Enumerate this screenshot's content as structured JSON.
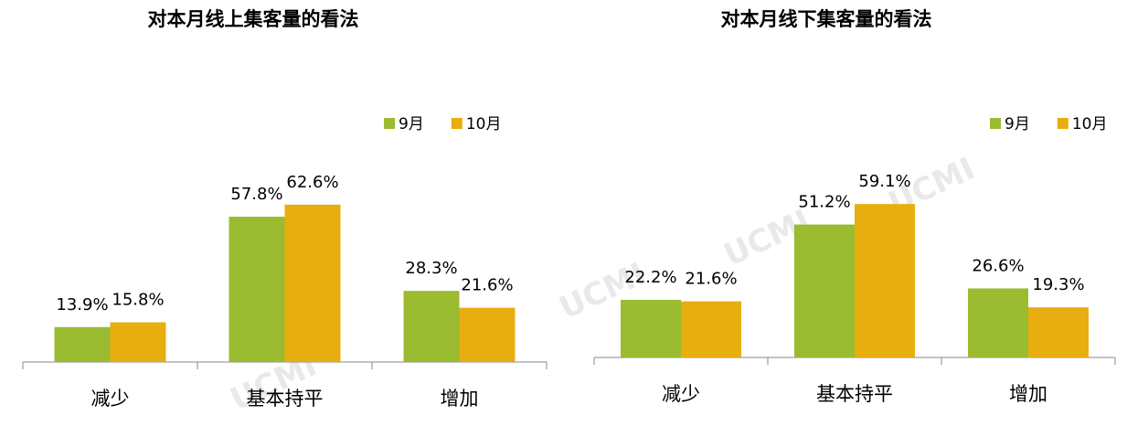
{
  "chart_data": [
    {
      "type": "bar",
      "title": "对本月线上集客量的看法",
      "watermark": "UCMI",
      "categories": [
        "减少",
        "基本持平",
        "增加"
      ],
      "series": [
        {
          "name": "9月",
          "color": "#9bbb30",
          "values": [
            13.9,
            57.8,
            28.3
          ],
          "value_labels": [
            "13.9%",
            "57.8%",
            "28.3%"
          ]
        },
        {
          "name": "10月",
          "color": "#e8ad0e",
          "values": [
            15.8,
            62.6,
            21.6
          ],
          "value_labels": [
            "15.8%",
            "62.6%",
            "21.6%"
          ]
        }
      ]
    },
    {
      "type": "bar",
      "title": "对本月线下集客量的看法",
      "watermark": "UCMI",
      "categories": [
        "减少",
        "基本持平",
        "增加"
      ],
      "series": [
        {
          "name": "9月",
          "color": "#9bbb30",
          "values": [
            22.2,
            51.2,
            26.6
          ],
          "value_labels": [
            "22.2%",
            "51.2%",
            "26.6%"
          ]
        },
        {
          "name": "10月",
          "color": "#e8ad0e",
          "values": [
            21.6,
            59.1,
            19.3
          ],
          "value_labels": [
            "21.6%",
            "59.1%",
            "19.3%"
          ]
        }
      ]
    }
  ]
}
